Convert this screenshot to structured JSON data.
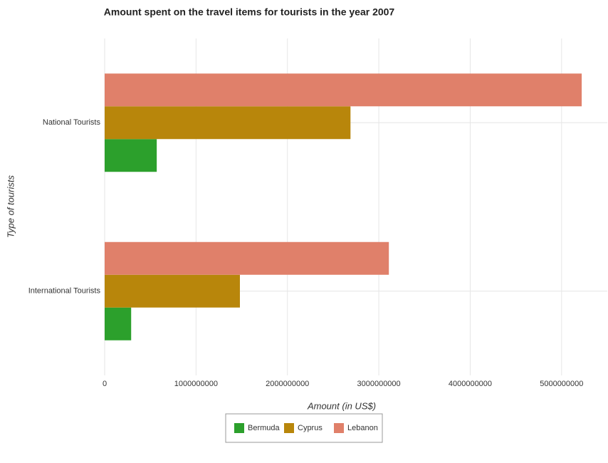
{
  "chart_data": {
    "type": "hbar",
    "title": "Amount spent on the travel items for tourists in the year 2007",
    "xlabel": "Amount (in US$)",
    "ylabel": "Type of tourists",
    "categories": [
      "International Tourists",
      "National Tourists"
    ],
    "series": [
      {
        "name": "Bermuda",
        "color": "#2ca02c",
        "values": [
          290000000,
          570000000
        ]
      },
      {
        "name": "Cyprus",
        "color": "#b8860b",
        "values": [
          1480000000,
          2690000000
        ]
      },
      {
        "name": "Lebanon",
        "color": "#e0806a",
        "values": [
          3110000000,
          5220000000
        ]
      }
    ],
    "xlim": [
      0,
      5500000000
    ],
    "xticks": [
      0,
      1000000000,
      2000000000,
      3000000000,
      4000000000,
      5000000000
    ],
    "grid": true,
    "legend": "bottom"
  }
}
